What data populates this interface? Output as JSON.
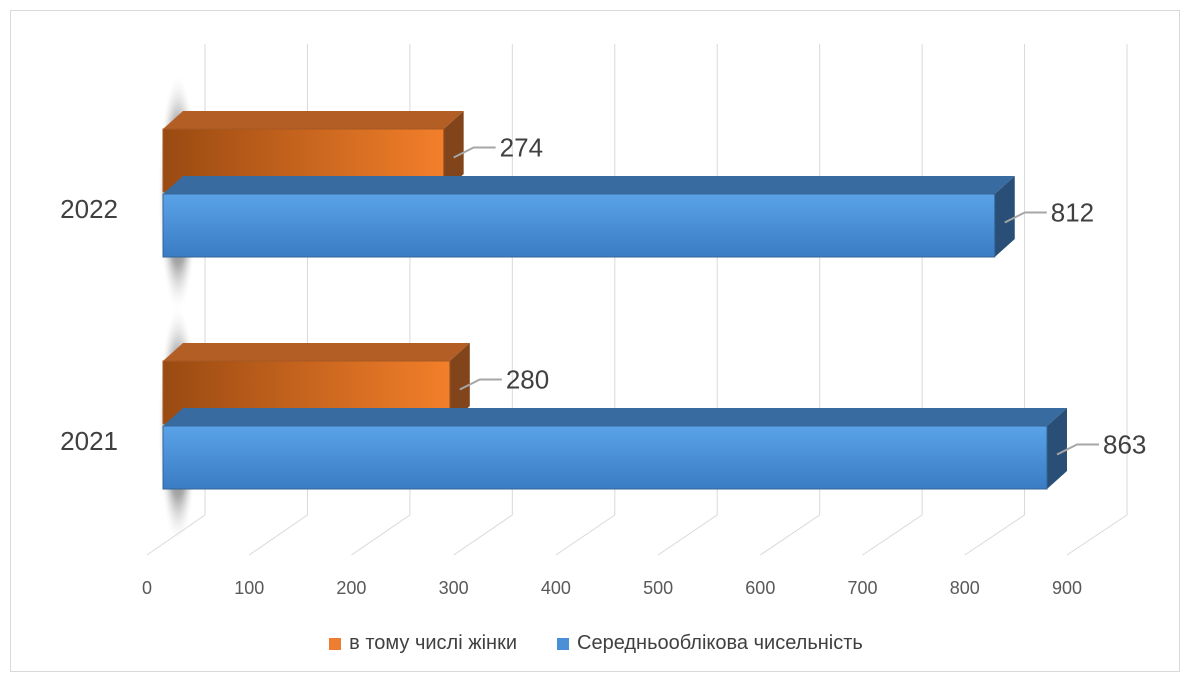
{
  "chart_data": {
    "type": "bar",
    "orientation": "horizontal",
    "style": "3d",
    "categories": [
      "2021",
      "2022"
    ],
    "series": [
      {
        "name": "в тому числі жінки",
        "values": [
          280,
          274
        ],
        "color": "#ED7D31"
      },
      {
        "name": "Середньооблікова чисельність",
        "values": [
          863,
          812
        ],
        "color": "#4A90D6"
      }
    ],
    "x_ticks": [
      "0",
      "100",
      "200",
      "300",
      "400",
      "500",
      "600",
      "700",
      "800",
      "900"
    ],
    "xlim": [
      0,
      900
    ],
    "grid": true,
    "legend_position": "bottom",
    "data_labels": true
  }
}
